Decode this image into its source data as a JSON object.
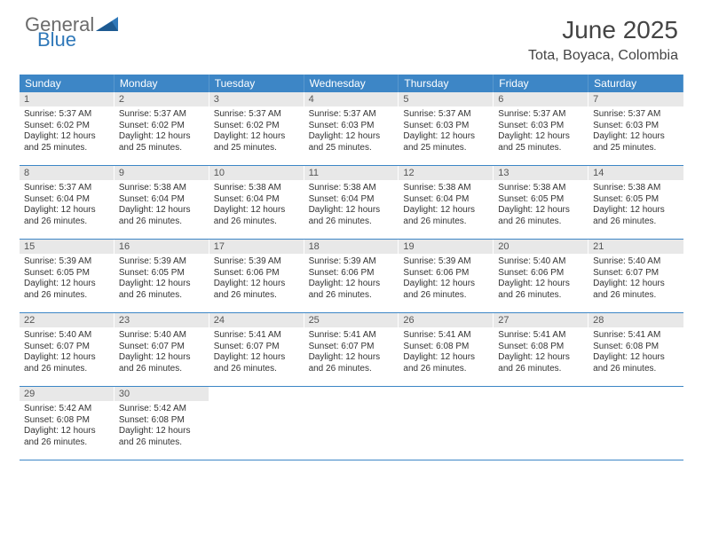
{
  "logo": {
    "general": "General",
    "blue": "Blue"
  },
  "title": "June 2025",
  "location": "Tota, Boyaca, Colombia",
  "colors": {
    "header_bg": "#3d86c6",
    "header_text": "#ffffff",
    "daynum_bg": "#e8e8e8",
    "border": "#3d86c6",
    "text": "#333333",
    "logo_gray": "#6b6b6b",
    "logo_blue": "#2f78b9"
  },
  "typography": {
    "title_fontsize": 28,
    "location_fontsize": 16,
    "dayhead_fontsize": 12,
    "cell_fontsize": 10
  },
  "day_headers": [
    "Sunday",
    "Monday",
    "Tuesday",
    "Wednesday",
    "Thursday",
    "Friday",
    "Saturday"
  ],
  "weeks": [
    [
      {
        "n": "1",
        "sr": "Sunrise: 5:37 AM",
        "ss": "Sunset: 6:02 PM",
        "dl": "Daylight: 12 hours and 25 minutes."
      },
      {
        "n": "2",
        "sr": "Sunrise: 5:37 AM",
        "ss": "Sunset: 6:02 PM",
        "dl": "Daylight: 12 hours and 25 minutes."
      },
      {
        "n": "3",
        "sr": "Sunrise: 5:37 AM",
        "ss": "Sunset: 6:02 PM",
        "dl": "Daylight: 12 hours and 25 minutes."
      },
      {
        "n": "4",
        "sr": "Sunrise: 5:37 AM",
        "ss": "Sunset: 6:03 PM",
        "dl": "Daylight: 12 hours and 25 minutes."
      },
      {
        "n": "5",
        "sr": "Sunrise: 5:37 AM",
        "ss": "Sunset: 6:03 PM",
        "dl": "Daylight: 12 hours and 25 minutes."
      },
      {
        "n": "6",
        "sr": "Sunrise: 5:37 AM",
        "ss": "Sunset: 6:03 PM",
        "dl": "Daylight: 12 hours and 25 minutes."
      },
      {
        "n": "7",
        "sr": "Sunrise: 5:37 AM",
        "ss": "Sunset: 6:03 PM",
        "dl": "Daylight: 12 hours and 25 minutes."
      }
    ],
    [
      {
        "n": "8",
        "sr": "Sunrise: 5:37 AM",
        "ss": "Sunset: 6:04 PM",
        "dl": "Daylight: 12 hours and 26 minutes."
      },
      {
        "n": "9",
        "sr": "Sunrise: 5:38 AM",
        "ss": "Sunset: 6:04 PM",
        "dl": "Daylight: 12 hours and 26 minutes."
      },
      {
        "n": "10",
        "sr": "Sunrise: 5:38 AM",
        "ss": "Sunset: 6:04 PM",
        "dl": "Daylight: 12 hours and 26 minutes."
      },
      {
        "n": "11",
        "sr": "Sunrise: 5:38 AM",
        "ss": "Sunset: 6:04 PM",
        "dl": "Daylight: 12 hours and 26 minutes."
      },
      {
        "n": "12",
        "sr": "Sunrise: 5:38 AM",
        "ss": "Sunset: 6:04 PM",
        "dl": "Daylight: 12 hours and 26 minutes."
      },
      {
        "n": "13",
        "sr": "Sunrise: 5:38 AM",
        "ss": "Sunset: 6:05 PM",
        "dl": "Daylight: 12 hours and 26 minutes."
      },
      {
        "n": "14",
        "sr": "Sunrise: 5:38 AM",
        "ss": "Sunset: 6:05 PM",
        "dl": "Daylight: 12 hours and 26 minutes."
      }
    ],
    [
      {
        "n": "15",
        "sr": "Sunrise: 5:39 AM",
        "ss": "Sunset: 6:05 PM",
        "dl": "Daylight: 12 hours and 26 minutes."
      },
      {
        "n": "16",
        "sr": "Sunrise: 5:39 AM",
        "ss": "Sunset: 6:05 PM",
        "dl": "Daylight: 12 hours and 26 minutes."
      },
      {
        "n": "17",
        "sr": "Sunrise: 5:39 AM",
        "ss": "Sunset: 6:06 PM",
        "dl": "Daylight: 12 hours and 26 minutes."
      },
      {
        "n": "18",
        "sr": "Sunrise: 5:39 AM",
        "ss": "Sunset: 6:06 PM",
        "dl": "Daylight: 12 hours and 26 minutes."
      },
      {
        "n": "19",
        "sr": "Sunrise: 5:39 AM",
        "ss": "Sunset: 6:06 PM",
        "dl": "Daylight: 12 hours and 26 minutes."
      },
      {
        "n": "20",
        "sr": "Sunrise: 5:40 AM",
        "ss": "Sunset: 6:06 PM",
        "dl": "Daylight: 12 hours and 26 minutes."
      },
      {
        "n": "21",
        "sr": "Sunrise: 5:40 AM",
        "ss": "Sunset: 6:07 PM",
        "dl": "Daylight: 12 hours and 26 minutes."
      }
    ],
    [
      {
        "n": "22",
        "sr": "Sunrise: 5:40 AM",
        "ss": "Sunset: 6:07 PM",
        "dl": "Daylight: 12 hours and 26 minutes."
      },
      {
        "n": "23",
        "sr": "Sunrise: 5:40 AM",
        "ss": "Sunset: 6:07 PM",
        "dl": "Daylight: 12 hours and 26 minutes."
      },
      {
        "n": "24",
        "sr": "Sunrise: 5:41 AM",
        "ss": "Sunset: 6:07 PM",
        "dl": "Daylight: 12 hours and 26 minutes."
      },
      {
        "n": "25",
        "sr": "Sunrise: 5:41 AM",
        "ss": "Sunset: 6:07 PM",
        "dl": "Daylight: 12 hours and 26 minutes."
      },
      {
        "n": "26",
        "sr": "Sunrise: 5:41 AM",
        "ss": "Sunset: 6:08 PM",
        "dl": "Daylight: 12 hours and 26 minutes."
      },
      {
        "n": "27",
        "sr": "Sunrise: 5:41 AM",
        "ss": "Sunset: 6:08 PM",
        "dl": "Daylight: 12 hours and 26 minutes."
      },
      {
        "n": "28",
        "sr": "Sunrise: 5:41 AM",
        "ss": "Sunset: 6:08 PM",
        "dl": "Daylight: 12 hours and 26 minutes."
      }
    ],
    [
      {
        "n": "29",
        "sr": "Sunrise: 5:42 AM",
        "ss": "Sunset: 6:08 PM",
        "dl": "Daylight: 12 hours and 26 minutes."
      },
      {
        "n": "30",
        "sr": "Sunrise: 5:42 AM",
        "ss": "Sunset: 6:08 PM",
        "dl": "Daylight: 12 hours and 26 minutes."
      },
      null,
      null,
      null,
      null,
      null
    ]
  ]
}
